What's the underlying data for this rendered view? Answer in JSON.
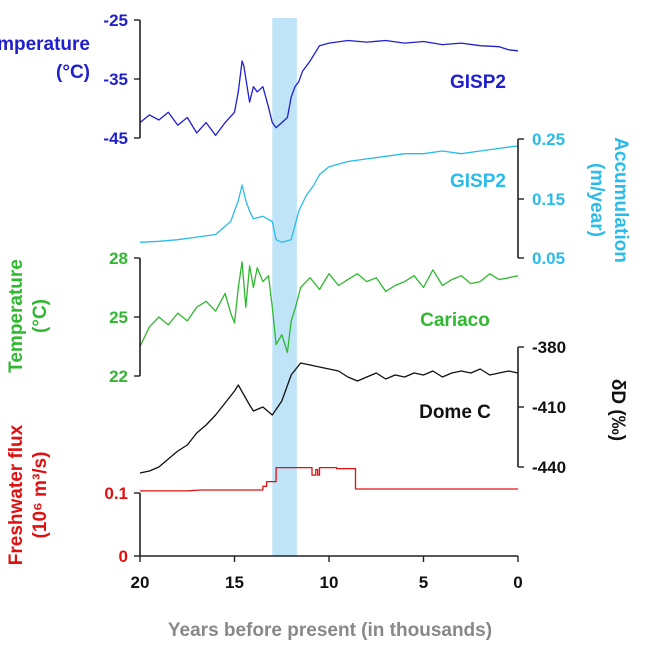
{
  "chart_data": {
    "type": "line",
    "xlabel": "Years before present (in thousands)",
    "xlim": [
      20,
      0
    ],
    "x_ticks": [
      "20",
      "15",
      "10",
      "5",
      "0"
    ],
    "event_band": {
      "from": 13,
      "to": 11.7,
      "color": "#bfe3f7"
    },
    "panels": [
      {
        "id": "gisp2-temp",
        "series_label": "GISP2",
        "color": "#1f1fd0",
        "axis_side": "left",
        "axis_label": [
          "Temperature",
          "(°C)"
        ],
        "ticks": [
          "-25",
          "-35",
          "-45"
        ],
        "ylim": [
          -48,
          -25
        ],
        "x": [
          20,
          19.5,
          19,
          18.5,
          18,
          17.5,
          17,
          16.5,
          16,
          15.5,
          15,
          14.8,
          14.6,
          14.5,
          14.2,
          14,
          13.8,
          13.5,
          13.2,
          13,
          12.8,
          12.5,
          12.2,
          12,
          11.8,
          11.6,
          11.4,
          11,
          10.5,
          10,
          9,
          8,
          7,
          6,
          5,
          4,
          3,
          2,
          1,
          0.5,
          0
        ],
        "values": [
          -45,
          -43.5,
          -44.5,
          -43,
          -45.5,
          -44,
          -47,
          -45,
          -47.5,
          -45,
          -43,
          -39,
          -33,
          -34,
          -41,
          -38,
          -39,
          -38,
          -42,
          -45,
          -46,
          -45,
          -44,
          -40,
          -38,
          -37,
          -35,
          -33,
          -30,
          -29.5,
          -29,
          -29.3,
          -29,
          -29.5,
          -29.2,
          -29.8,
          -29.5,
          -30,
          -30.2,
          -30.8,
          -31
        ]
      },
      {
        "id": "gisp2-accum",
        "series_label": "GISP2",
        "color": "#2bbbe8",
        "axis_side": "right",
        "axis_label": [
          "Accumulation",
          "(m/year)"
        ],
        "ticks": [
          "0.25",
          "0.15",
          "0.05"
        ],
        "ylim": [
          0.04,
          0.27
        ],
        "x": [
          20,
          19,
          18,
          17,
          16,
          15.2,
          14.8,
          14.6,
          14.4,
          14.2,
          14,
          13.5,
          13,
          12.8,
          12.5,
          12,
          11.6,
          11.2,
          10.8,
          10.5,
          10,
          9.5,
          9,
          8,
          7,
          6,
          5,
          4,
          3,
          2,
          1,
          0
        ],
        "values": [
          0.07,
          0.072,
          0.075,
          0.08,
          0.085,
          0.11,
          0.15,
          0.18,
          0.15,
          0.13,
          0.115,
          0.12,
          0.11,
          0.075,
          0.07,
          0.075,
          0.13,
          0.16,
          0.18,
          0.2,
          0.215,
          0.22,
          0.225,
          0.23,
          0.235,
          0.24,
          0.24,
          0.245,
          0.24,
          0.245,
          0.25,
          0.255
        ]
      },
      {
        "id": "cariaco-temp",
        "series_label": "Cariaco",
        "color": "#30b830",
        "axis_side": "left",
        "axis_label": [
          "Temperature",
          "(°C)"
        ],
        "ticks": [
          "28",
          "25",
          "22"
        ],
        "ylim": [
          22,
          28
        ],
        "x": [
          20,
          19.5,
          19,
          18.5,
          18,
          17.5,
          17,
          16.5,
          16,
          15.5,
          15.2,
          15,
          14.8,
          14.6,
          14.4,
          14.2,
          14,
          13.8,
          13.5,
          13.2,
          13,
          12.8,
          12.5,
          12.2,
          12,
          11.8,
          11.5,
          11,
          10.5,
          10,
          9.5,
          9,
          8.5,
          8,
          7.5,
          7,
          6.5,
          6,
          5.5,
          5,
          4.5,
          4,
          3.5,
          3,
          2.5,
          2,
          1.5,
          1,
          0.5,
          0
        ],
        "values": [
          23.5,
          24.5,
          25,
          24.6,
          25.2,
          24.8,
          25.5,
          25.8,
          25.3,
          26.2,
          25.2,
          24.7,
          26.5,
          27.8,
          25.5,
          27.6,
          26.5,
          27.5,
          26.8,
          27.1,
          25.5,
          23.6,
          24.1,
          23.2,
          24.8,
          25.4,
          26.5,
          27,
          26.4,
          27.2,
          26.6,
          26.9,
          27.2,
          26.8,
          27,
          26.3,
          26.6,
          26.8,
          27.1,
          26.5,
          27.4,
          26.6,
          26.9,
          27.1,
          26.7,
          26.8,
          27.2,
          26.9,
          27,
          27.1
        ]
      },
      {
        "id": "domec-dd",
        "series_label": "Dome C",
        "color": "#111111",
        "axis_side": "right",
        "axis_label": [
          "δD (‰)"
        ],
        "ticks": [
          "-380",
          "-410",
          "-440"
        ],
        "ylim": [
          -440,
          -380
        ],
        "x": [
          20,
          19.5,
          19,
          18.5,
          18,
          17.5,
          17,
          16.5,
          16,
          15.5,
          15,
          14.8,
          14.5,
          14.2,
          14,
          13.5,
          13,
          12.5,
          12,
          11.5,
          11,
          10.5,
          10,
          9.5,
          9,
          8.5,
          8,
          7.5,
          7,
          6.5,
          6,
          5.5,
          5,
          4.5,
          4,
          3.5,
          3,
          2.5,
          2,
          1.5,
          1,
          0.5,
          0
        ],
        "values": [
          -443,
          -442,
          -440,
          -436,
          -432,
          -429,
          -423,
          -419,
          -414,
          -408,
          -402,
          -399,
          -404,
          -409,
          -412,
          -410,
          -414,
          -407,
          -394,
          -388,
          -389,
          -390,
          -391,
          -392,
          -395,
          -397,
          -395,
          -393,
          -396,
          -394,
          -395,
          -393,
          -394,
          -392,
          -395,
          -393,
          -392,
          -393,
          -391,
          -394,
          -393,
          -392,
          -393
        ]
      },
      {
        "id": "freshwater-flux",
        "series_label": "",
        "color": "#e01010",
        "axis_side": "left",
        "axis_label": [
          "Freshwater flux",
          "(10⁶ m³/s)"
        ],
        "ticks": [
          "0.1",
          "0"
        ],
        "ylim": [
          0,
          0.1
        ],
        "step": true,
        "x": [
          20,
          17.5,
          16.8,
          14.8,
          14.8,
          13.5,
          13.5,
          13.3,
          13.3,
          12.8,
          12.8,
          11.7,
          11.7,
          10.9,
          10.9,
          10.7,
          10.7,
          10.6,
          10.6,
          10.5,
          10.5,
          10.2,
          10.2,
          9.6,
          9.6,
          8.6,
          8.6,
          7.9,
          7.9,
          0
        ],
        "values": [
          0.07,
          0.07,
          0.071,
          0.071,
          0.071,
          0.071,
          0.075,
          0.075,
          0.08,
          0.08,
          0.095,
          0.095,
          0.095,
          0.095,
          0.087,
          0.087,
          0.093,
          0.093,
          0.087,
          0.087,
          0.095,
          0.095,
          0.095,
          0.095,
          0.094,
          0.094,
          0.072,
          0.072,
          0.072,
          0.072
        ]
      }
    ]
  }
}
